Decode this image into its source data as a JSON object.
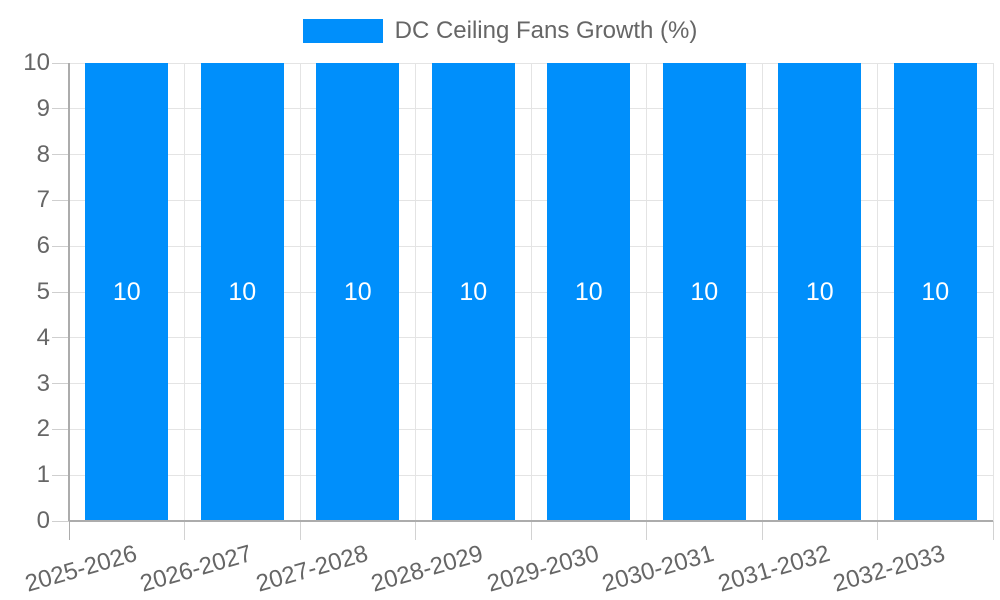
{
  "legend": {
    "label": "DC Ceiling Fans Growth (%)",
    "swatch_color": "#008FFB"
  },
  "chart_data": {
    "type": "bar",
    "title": "DC Ceiling Fans Growth (%)",
    "categories": [
      "2025-2026",
      "2026-2027",
      "2027-2028",
      "2028-2029",
      "2029-2030",
      "2030-2031",
      "2031-2032",
      "2032-2033"
    ],
    "series": [
      {
        "name": "DC Ceiling Fans Growth (%)",
        "values": [
          10,
          10,
          10,
          10,
          10,
          10,
          10,
          10
        ]
      }
    ],
    "data_labels": [
      "10",
      "10",
      "10",
      "10",
      "10",
      "10",
      "10",
      "10"
    ],
    "xlabel": "",
    "ylabel": "",
    "ylim": [
      0,
      10
    ],
    "yticks": [
      0,
      1,
      2,
      3,
      4,
      5,
      6,
      7,
      8,
      9,
      10
    ],
    "grid": true,
    "legend_position": "top-center",
    "colors": {
      "bar": "#008FFB",
      "data_label": "#ffffff",
      "grid": "#e4e4e4",
      "axis": "#acacac",
      "tick": "#cfcfcf",
      "text": "#666666"
    }
  }
}
